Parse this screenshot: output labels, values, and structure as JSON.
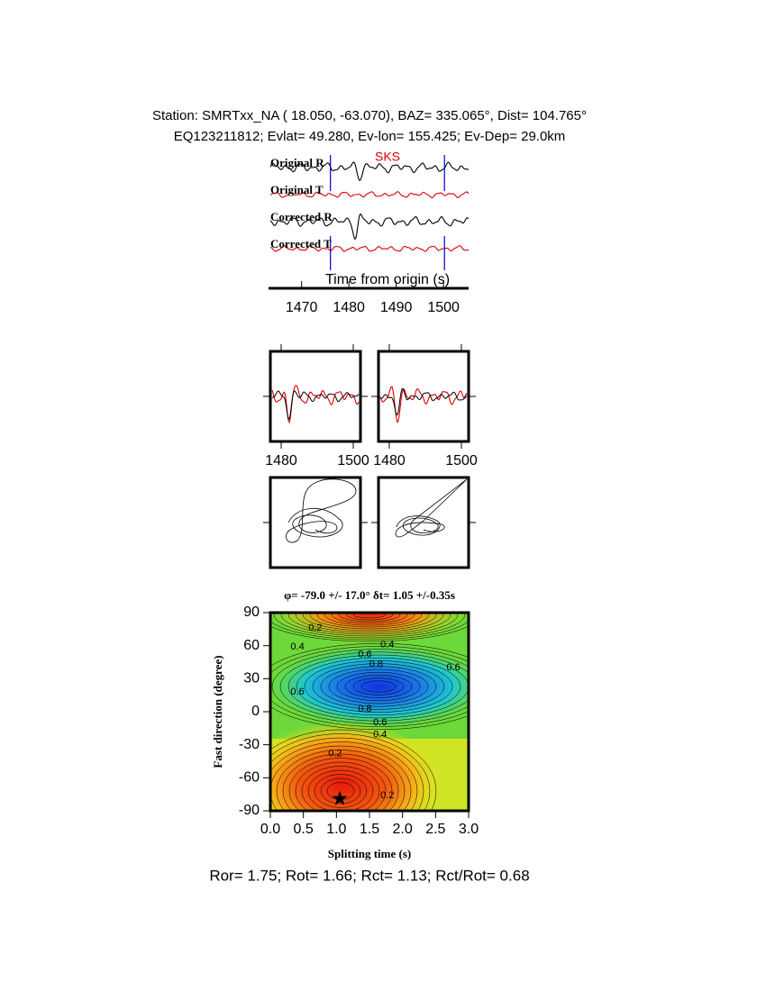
{
  "header": {
    "station_line": "Station: SMRTxx_NA (  18.050,  -63.070), BAZ=  335.065°, Dist=  104.765°",
    "event_line": "EQ123211812; Evlat=  49.280, Ev-lon= 155.425; Ev-Dep= 29.0km"
  },
  "chart_data": [
    {
      "type": "traces",
      "phase": "SKS",
      "phase_color": "#dd0000",
      "traces": [
        "Original R",
        "Original T",
        "Corrected R",
        "Corrected T"
      ],
      "trace_colors": [
        "#000000",
        "#dd0000",
        "#000000",
        "#dd0000"
      ],
      "xlabel": "Time from origin (s)",
      "xlim": [
        1463.4,
        1505.3
      ],
      "xticks": [
        1470,
        1480,
        1490,
        1500
      ],
      "window": [
        1476.1,
        1500.2
      ],
      "window_color": "#0000cc"
    },
    {
      "type": "waveform-compare",
      "xlim": [
        1477,
        1502
      ],
      "xticks": [
        1480,
        1500
      ]
    },
    {
      "type": "waveform-compare",
      "xlim": [
        1477,
        1502
      ],
      "xticks": [
        1480,
        1500
      ]
    },
    {
      "type": "contour",
      "title": "φ= -79.0 +/- 17.0° δt= 1.05 +/-0.35s",
      "xlabel": "Splitting time (s)",
      "ylabel": "Fast direction (degree)",
      "xlim": [
        0,
        3
      ],
      "ylim": [
        -90,
        90
      ],
      "xticks": [
        {
          "value": 0,
          "label": "0.0"
        },
        0.5,
        {
          "value": 1,
          "label": "1.0"
        },
        1.5,
        {
          "value": 2,
          "label": "2.0"
        },
        2.5,
        {
          "value": 3,
          "label": "3.0"
        }
      ],
      "yticks": [
        90,
        60,
        30,
        0,
        -30,
        -60,
        -90
      ],
      "best": {
        "x": 1.05,
        "y": -79
      },
      "contour_labels": [
        {
          "x": 0.68,
          "y": 76,
          "value": 0.2,
          "label": "0.2"
        },
        {
          "x": 0.41,
          "y": 59,
          "value": 0.4,
          "label": "0.4"
        },
        {
          "x": 1.77,
          "y": 61,
          "value": 0.4,
          "label": "0.4"
        },
        {
          "x": 1.43,
          "y": 52,
          "value": 0.6,
          "label": "0.6"
        },
        {
          "x": 1.6,
          "y": 43,
          "value": 0.8,
          "label": "0.8"
        },
        {
          "x": 2.77,
          "y": 40,
          "value": 0.6,
          "label": "0.6"
        },
        {
          "x": 0.41,
          "y": 18,
          "value": 0.6,
          "label": "0.6"
        },
        {
          "x": 1.43,
          "y": 2.5,
          "value": 0.8,
          "label": "0.8"
        },
        {
          "x": 1.66,
          "y": -10,
          "value": 0.6,
          "label": "0.6"
        },
        {
          "x": 1.66,
          "y": -21,
          "value": 0.4,
          "label": "0.4"
        },
        {
          "x": 0.98,
          "y": -38,
          "value": 0.2,
          "label": "0.2"
        },
        {
          "x": 1.77,
          "y": -76,
          "value": 0.2,
          "label": "0.2"
        }
      ]
    }
  ],
  "footer": "Ror= 1.75; Rot= 1.66; Rct= 1.13; Rct/Rot= 0.68"
}
